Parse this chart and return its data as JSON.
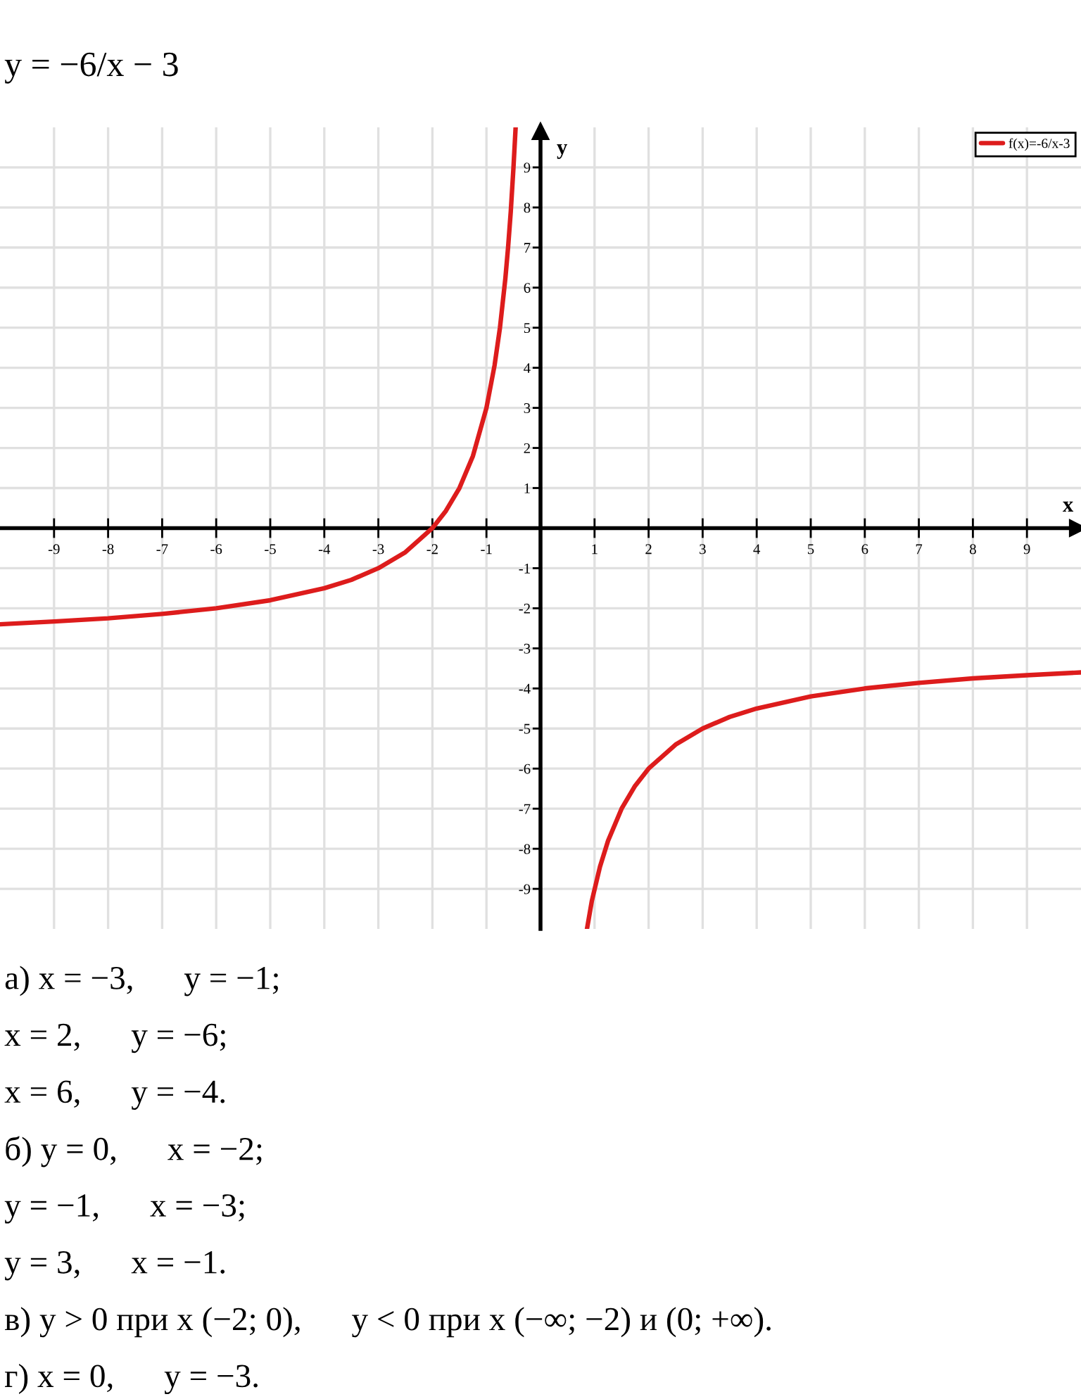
{
  "chart_data": {
    "type": "line",
    "title": "y = −6/x − 3",
    "xlabel": "x",
    "ylabel": "y",
    "x": [
      -10,
      -9,
      -8,
      -7,
      -6,
      -5,
      -4,
      -3.5,
      -3,
      -2.5,
      -2,
      -1.75,
      -1.5,
      -1.25,
      -1,
      -0.85,
      -0.75,
      -0.65,
      -0.6,
      -0.55,
      -0.5,
      -0.46,
      0,
      0.86,
      0.95,
      1.1,
      1.25,
      1.5,
      1.75,
      2,
      2.5,
      3,
      3.5,
      4,
      5,
      6,
      7,
      8,
      9,
      10
    ],
    "series": [
      {
        "name": "f(x)=-6/x-3",
        "color": "#dd1c1c",
        "values": [
          -2.4,
          -2.33,
          -2.25,
          -2.14,
          -2,
          -1.8,
          -1.5,
          -1.29,
          -1,
          -0.6,
          0,
          0.43,
          1,
          1.8,
          3,
          4.06,
          5,
          6.23,
          7,
          7.9,
          9,
          10,
          null,
          -10,
          -9.3,
          -8.45,
          -7.8,
          -7,
          -6.43,
          -6,
          -5.4,
          -5,
          -4.71,
          -4.5,
          -4.2,
          -4,
          -3.86,
          -3.75,
          -3.67,
          -3.6
        ]
      }
    ],
    "xlim": [
      -10,
      10
    ],
    "ylim": [
      -10,
      10
    ],
    "xticks": [
      -9,
      -8,
      -7,
      -6,
      -5,
      -4,
      -3,
      -2,
      -1,
      1,
      2,
      3,
      4,
      5,
      6,
      7,
      8,
      9
    ],
    "yticks": [
      -9,
      -8,
      -7,
      -6,
      -5,
      -4,
      -3,
      -2,
      -1,
      1,
      2,
      3,
      4,
      5,
      6,
      7,
      8,
      9
    ],
    "grid": true,
    "legend": "top right",
    "annotations": [
      "а) x = −3,      y = −1;",
      "x = 2,      y = −6;",
      "x = 6,      y = −4.",
      "б) y = 0,      x = −2;",
      "y = −1,      x = −3;",
      "y = 3,      x = −1.",
      "в) y > 0 при x (−2; 0),      y < 0 при x (−∞; −2) и (0; +∞).",
      "г) x = 0,      y = −3."
    ]
  }
}
